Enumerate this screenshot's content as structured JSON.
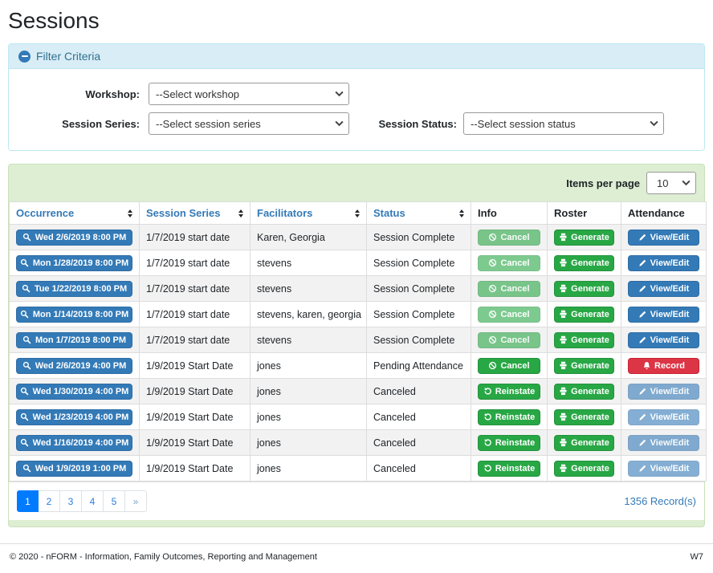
{
  "page": {
    "title": "Sessions"
  },
  "filter_panel": {
    "title": "Filter Criteria",
    "workshop": {
      "label": "Workshop:",
      "selected": "--Select workshop"
    },
    "session_series": {
      "label": "Session Series:",
      "selected": "--Select session series"
    },
    "session_status": {
      "label": "Session Status:",
      "selected": "--Select session status"
    }
  },
  "table": {
    "items_per_page": {
      "label": "Items per page",
      "selected": "10"
    },
    "columns": [
      {
        "label": "Occurrence",
        "sortable": true
      },
      {
        "label": "Session Series",
        "sortable": true
      },
      {
        "label": "Facilitators",
        "sortable": true
      },
      {
        "label": "Status",
        "sortable": true
      },
      {
        "label": "Info",
        "sortable": false
      },
      {
        "label": "Roster",
        "sortable": false
      },
      {
        "label": "Attendance",
        "sortable": false
      }
    ],
    "rows": [
      {
        "occurrence": "Wed 2/6/2019 8:00 PM",
        "session_series": "1/7/2019 start date",
        "facilitators": "Karen, Georgia",
        "status": "Session Complete",
        "info": {
          "label": "Cancel",
          "icon": "ban",
          "color": "green",
          "disabled": true
        },
        "roster": {
          "label": "Generate",
          "icon": "print",
          "color": "green",
          "disabled": false
        },
        "attendance": {
          "label": "View/Edit",
          "icon": "pencil",
          "color": "blue",
          "disabled": false
        }
      },
      {
        "occurrence": "Mon 1/28/2019 8:00 PM",
        "session_series": "1/7/2019 start date",
        "facilitators": "stevens",
        "status": "Session Complete",
        "info": {
          "label": "Cancel",
          "icon": "ban",
          "color": "green",
          "disabled": true
        },
        "roster": {
          "label": "Generate",
          "icon": "print",
          "color": "green",
          "disabled": false
        },
        "attendance": {
          "label": "View/Edit",
          "icon": "pencil",
          "color": "blue",
          "disabled": false
        }
      },
      {
        "occurrence": "Tue 1/22/2019 8:00 PM",
        "session_series": "1/7/2019 start date",
        "facilitators": "stevens",
        "status": "Session Complete",
        "info": {
          "label": "Cancel",
          "icon": "ban",
          "color": "green",
          "disabled": true
        },
        "roster": {
          "label": "Generate",
          "icon": "print",
          "color": "green",
          "disabled": false
        },
        "attendance": {
          "label": "View/Edit",
          "icon": "pencil",
          "color": "blue",
          "disabled": false
        }
      },
      {
        "occurrence": "Mon 1/14/2019 8:00 PM",
        "session_series": "1/7/2019 start date",
        "facilitators": "stevens, karen, georgia",
        "status": "Session Complete",
        "info": {
          "label": "Cancel",
          "icon": "ban",
          "color": "green",
          "disabled": true
        },
        "roster": {
          "label": "Generate",
          "icon": "print",
          "color": "green",
          "disabled": false
        },
        "attendance": {
          "label": "View/Edit",
          "icon": "pencil",
          "color": "blue",
          "disabled": false
        }
      },
      {
        "occurrence": "Mon 1/7/2019 8:00 PM",
        "session_series": "1/7/2019 start date",
        "facilitators": "stevens",
        "status": "Session Complete",
        "info": {
          "label": "Cancel",
          "icon": "ban",
          "color": "green",
          "disabled": true
        },
        "roster": {
          "label": "Generate",
          "icon": "print",
          "color": "green",
          "disabled": false
        },
        "attendance": {
          "label": "View/Edit",
          "icon": "pencil",
          "color": "blue",
          "disabled": false
        }
      },
      {
        "occurrence": "Wed 2/6/2019 4:00 PM",
        "session_series": "1/9/2019 Start Date",
        "facilitators": "jones",
        "status": "Pending Attendance",
        "info": {
          "label": "Cancel",
          "icon": "ban",
          "color": "green",
          "disabled": false
        },
        "roster": {
          "label": "Generate",
          "icon": "print",
          "color": "green",
          "disabled": false
        },
        "attendance": {
          "label": "Record",
          "icon": "bell",
          "color": "red",
          "disabled": false
        }
      },
      {
        "occurrence": "Wed 1/30/2019 4:00 PM",
        "session_series": "1/9/2019 Start Date",
        "facilitators": "jones",
        "status": "Canceled",
        "info": {
          "label": "Reinstate",
          "icon": "undo",
          "color": "green",
          "disabled": false
        },
        "roster": {
          "label": "Generate",
          "icon": "print",
          "color": "green",
          "disabled": false
        },
        "attendance": {
          "label": "View/Edit",
          "icon": "pencil",
          "color": "blue",
          "disabled": true
        }
      },
      {
        "occurrence": "Wed 1/23/2019 4:00 PM",
        "session_series": "1/9/2019 Start Date",
        "facilitators": "jones",
        "status": "Canceled",
        "info": {
          "label": "Reinstate",
          "icon": "undo",
          "color": "green",
          "disabled": false
        },
        "roster": {
          "label": "Generate",
          "icon": "print",
          "color": "green",
          "disabled": false
        },
        "attendance": {
          "label": "View/Edit",
          "icon": "pencil",
          "color": "blue",
          "disabled": true
        }
      },
      {
        "occurrence": "Wed 1/16/2019 4:00 PM",
        "session_series": "1/9/2019 Start Date",
        "facilitators": "jones",
        "status": "Canceled",
        "info": {
          "label": "Reinstate",
          "icon": "undo",
          "color": "green",
          "disabled": false
        },
        "roster": {
          "label": "Generate",
          "icon": "print",
          "color": "green",
          "disabled": false
        },
        "attendance": {
          "label": "View/Edit",
          "icon": "pencil",
          "color": "blue",
          "disabled": true
        }
      },
      {
        "occurrence": "Wed 1/9/2019 1:00 PM",
        "session_series": "1/9/2019 Start Date",
        "facilitators": "jones",
        "status": "Canceled",
        "info": {
          "label": "Reinstate",
          "icon": "undo",
          "color": "green",
          "disabled": false
        },
        "roster": {
          "label": "Generate",
          "icon": "print",
          "color": "green",
          "disabled": false
        },
        "attendance": {
          "label": "View/Edit",
          "icon": "pencil",
          "color": "blue",
          "disabled": true
        }
      }
    ],
    "pagination": {
      "pages": [
        "1",
        "2",
        "3",
        "4",
        "5",
        "»"
      ],
      "active": "1"
    },
    "record_count": "1356 Record(s)"
  },
  "footer": {
    "copyright": "© 2020 - nFORM - Information, Family Outcomes, Reporting and Management",
    "code": "W7"
  },
  "colors": {
    "primary_blue": "#337ab7",
    "success_green": "#28a745",
    "danger_red": "#dc3545",
    "info_header_bg": "#d9edf7",
    "grid_panel_bg": "#ddeed3",
    "pagination_active": "#007bff"
  }
}
